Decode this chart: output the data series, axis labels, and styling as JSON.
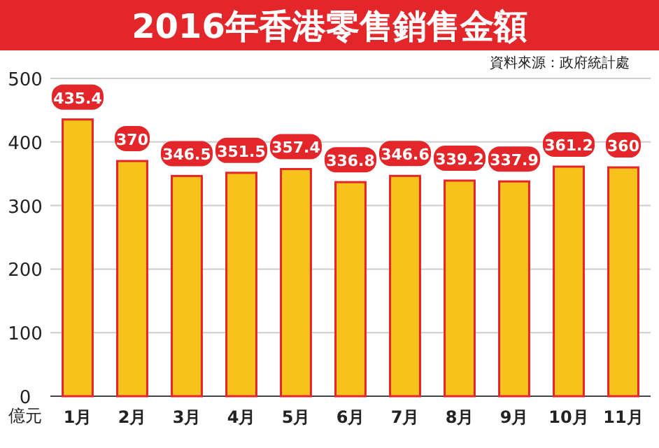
{
  "chart_data": {
    "type": "bar",
    "title": "2016年香港零售銷售金額",
    "ylabel": "億元",
    "annotations": [
      "資料來源：政府統計處"
    ],
    "categories": [
      "1月",
      "2月",
      "3月",
      "4月",
      "5月",
      "6月",
      "7月",
      "8月",
      "9月",
      "10月",
      "11月"
    ],
    "values": [
      435.4,
      370,
      346.5,
      351.5,
      357.4,
      336.8,
      346.6,
      339.2,
      337.9,
      361.2,
      360
    ],
    "color": "#f7c21b",
    "ylim": [
      0,
      500
    ],
    "yticks": [
      0,
      100,
      200,
      300,
      400,
      500
    ],
    "grid": "y",
    "data_labels": true
  }
}
